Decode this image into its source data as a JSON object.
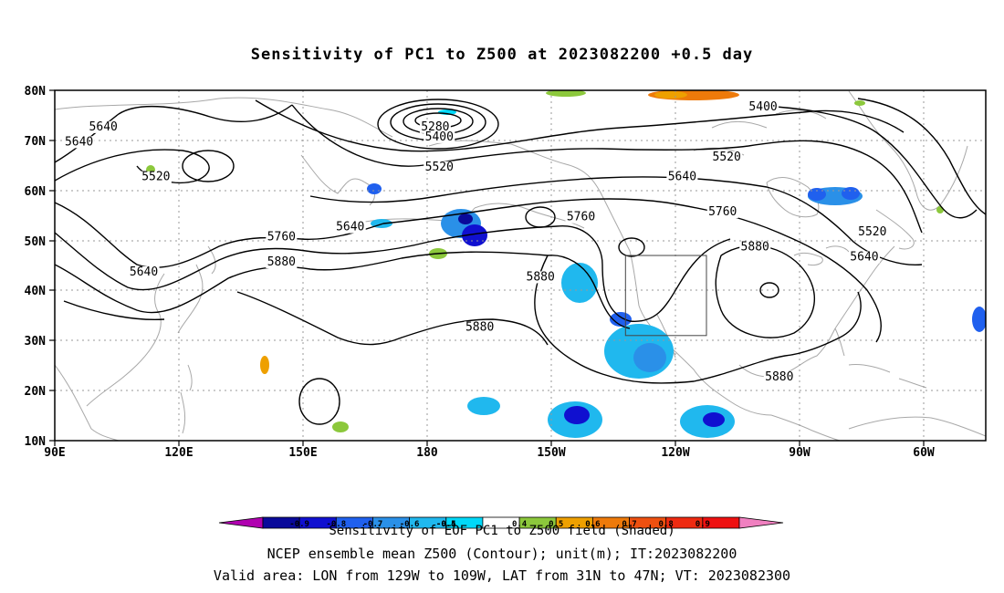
{
  "title": "Sensitivity of PC1 to Z500 at 2023082200 +0.5 day",
  "lat_labels": [
    "80N",
    "70N",
    "60N",
    "50N",
    "40N",
    "30N",
    "20N",
    "10N"
  ],
  "lon_labels": [
    "90E",
    "120E",
    "150E",
    "180",
    "150W",
    "120W",
    "90W",
    "60W"
  ],
  "contour_labels": [
    {
      "text": "5640",
      "lon": 102,
      "lat": 72
    },
    {
      "text": "5640",
      "lon": 96,
      "lat": 69
    },
    {
      "text": "5520",
      "lon": 115,
      "lat": 62
    },
    {
      "text": "5640",
      "lon": 112,
      "lat": 43
    },
    {
      "text": "5760",
      "lon": 146,
      "lat": 50
    },
    {
      "text": "5880",
      "lon": 146,
      "lat": 45
    },
    {
      "text": "5280",
      "lon": -176,
      "lat": 72
    },
    {
      "text": "5400",
      "lon": -175,
      "lat": 70
    },
    {
      "text": "5520",
      "lon": -175,
      "lat": 64
    },
    {
      "text": "5640",
      "lon": 163,
      "lat": 52
    },
    {
      "text": "5760",
      "lon": -140,
      "lat": 54
    },
    {
      "text": "5880",
      "lon": -150,
      "lat": 42
    },
    {
      "text": "5880",
      "lon": -165,
      "lat": 32
    },
    {
      "text": "5400",
      "lon": -95,
      "lat": 76
    },
    {
      "text": "5520",
      "lon": -104,
      "lat": 66
    },
    {
      "text": "5640",
      "lon": -115,
      "lat": 62
    },
    {
      "text": "5760",
      "lon": -105,
      "lat": 55
    },
    {
      "text": "5880",
      "lon": -97,
      "lat": 48
    },
    {
      "text": "5520",
      "lon": -68,
      "lat": 51
    },
    {
      "text": "5640",
      "lon": -70,
      "lat": 46
    },
    {
      "text": "5880",
      "lon": -91,
      "lat": 22
    }
  ],
  "valid_box": {
    "lon_min": -129,
    "lon_max": -109,
    "lat_min": 31,
    "lat_max": 47
  },
  "colorbar": {
    "labels": [
      "-0.9",
      "-0.8",
      "-0.7",
      "-0.6",
      "-0.5",
      "-0.4",
      "0.4",
      "0.5",
      "0.6",
      "0.7",
      "0.8",
      "0.9"
    ],
    "colors": [
      "#b000b0",
      "#0a0a9a",
      "#1010d0",
      "#2060ee",
      "#2a90e8",
      "#20b8ee",
      "#00d8f8",
      "#ffffff",
      "#8cc83c",
      "#eea000",
      "#ee7a0a",
      "#ee5010",
      "#ee2a10",
      "#ee1010",
      "#f080c0"
    ]
  },
  "caption1": "Sensitivity of EOF PC1 to Z500 field (Shaded)",
  "caption2": "NCEP ensemble mean Z500 (Contour); unit(m); IT:2023082200",
  "caption3": "Valid area: LON from 129W to 109W, LAT from 31N to 47N; VT: 2023082300"
}
